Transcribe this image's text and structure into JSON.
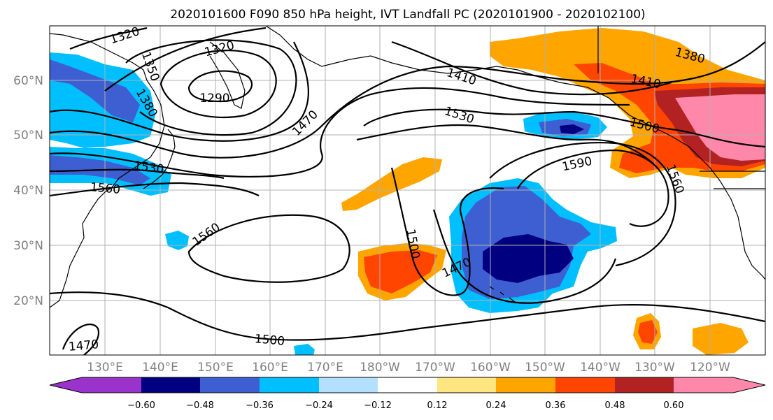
{
  "title": "2020101600 F090 850 hPa height, IVT Landfall PC (2020101900 - 2020102100)",
  "map": {
    "lat_labels": [
      "60°N",
      "50°N",
      "40°N",
      "30°N",
      "20°N"
    ],
    "lon_labels": [
      "130°E",
      "140°E",
      "150°E",
      "160°E",
      "170°E",
      "180°W",
      "170°W",
      "160°W",
      "150°W",
      "140°W",
      "130°W",
      "120°W"
    ],
    "contour_labels": [
      "1320",
      "1320",
      "1350",
      "1380",
      "1290",
      "1410",
      "1470",
      "1530",
      "1500",
      "1380",
      "1410",
      "1530",
      "1560",
      "1590",
      "1560",
      "1560",
      "1500",
      "1470",
      "1500",
      "1470"
    ]
  },
  "colorbar": {
    "ticks": [
      "−0.60",
      "−0.48",
      "−0.36",
      "−0.24",
      "−0.12",
      "0.12",
      "0.24",
      "0.36",
      "0.48",
      "0.60"
    ],
    "colors": [
      "#9933cc",
      "#000080",
      "#3d5fd1",
      "#00bfff",
      "#b3e0ff",
      "#ffffff",
      "#ffe680",
      "#ffa500",
      "#ff4500",
      "#b22222",
      "#ff88aa"
    ]
  }
}
